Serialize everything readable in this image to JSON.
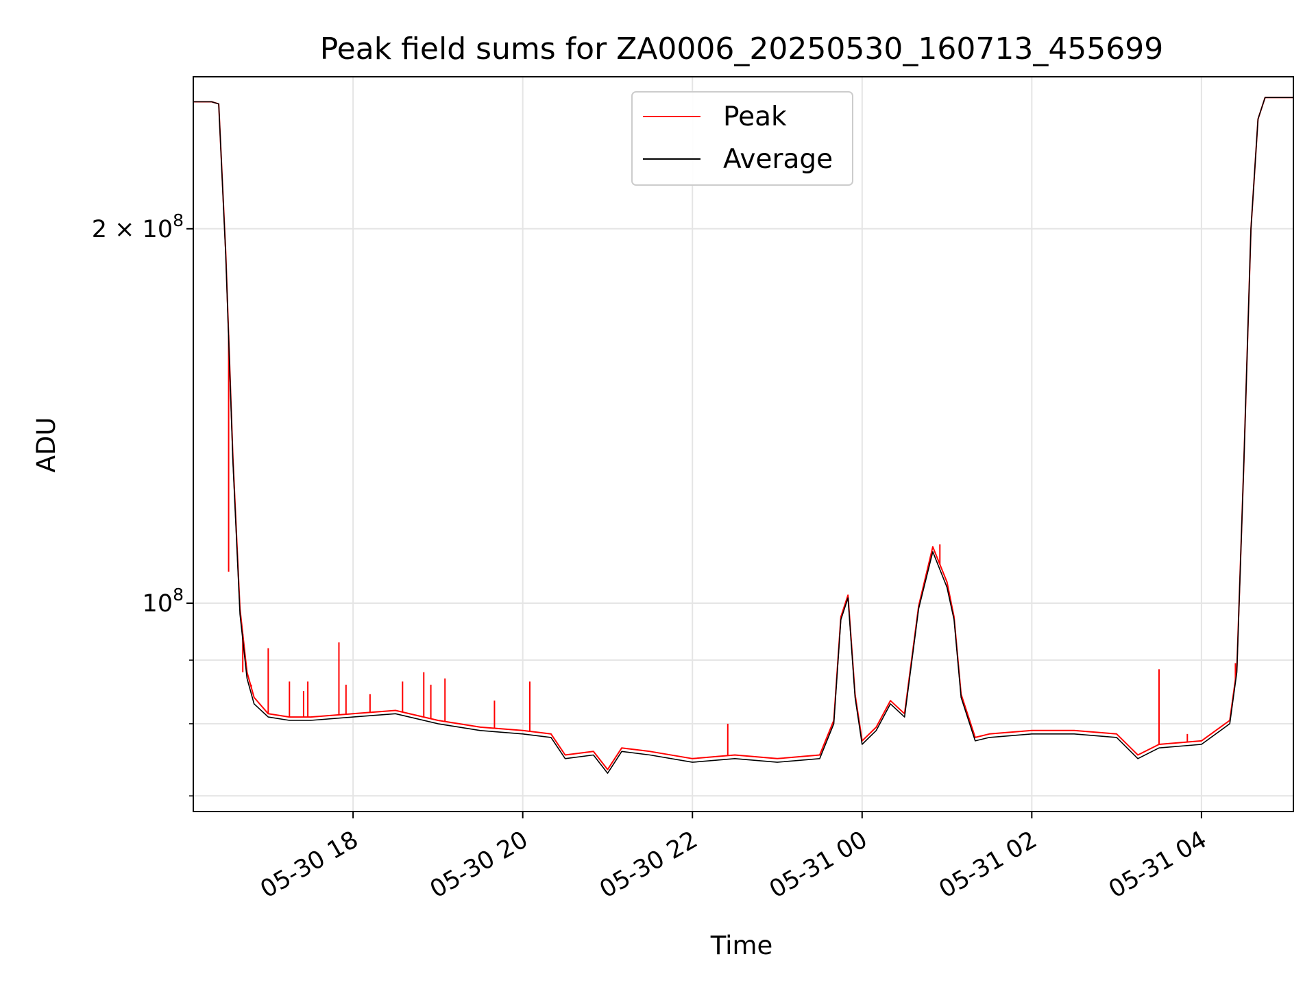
{
  "chart_data": {
    "type": "line",
    "title": "Peak field sums for ZA0006_20250530_160713_455699",
    "xlabel": "Time",
    "ylabel": "ADU",
    "yscale": "log",
    "grid": true,
    "legend_position": "upper center",
    "xlim": [
      "2025-05-30 16:07",
      "2025-05-31 05:05"
    ],
    "ylim": [
      68000000,
      265000000
    ],
    "x_ticks": [
      "05-30 18",
      "05-30 20",
      "05-30 22",
      "05-31 00",
      "05-31 02",
      "05-31 04"
    ],
    "y_ticks": [
      {
        "value": 100000000,
        "base": "10",
        "exp": "8"
      },
      {
        "value": 200000000,
        "base": "2 × 10",
        "exp": "8"
      }
    ],
    "colors": {
      "peak": "#ff0000",
      "average": "#000000",
      "grid": "#e5e5e5"
    },
    "series": [
      {
        "name": "Average",
        "x": [
          "2025-05-30 16:07",
          "2025-05-30 16:15",
          "2025-05-30 16:20",
          "2025-05-30 16:25",
          "2025-05-30 16:30",
          "2025-05-30 16:35",
          "2025-05-30 16:40",
          "2025-05-30 16:45",
          "2025-05-30 16:50",
          "2025-05-30 17:00",
          "2025-05-30 17:15",
          "2025-05-30 17:30",
          "2025-05-30 18:00",
          "2025-05-30 18:30",
          "2025-05-30 19:00",
          "2025-05-30 19:30",
          "2025-05-30 20:00",
          "2025-05-30 20:20",
          "2025-05-30 20:30",
          "2025-05-30 20:50",
          "2025-05-30 21:00",
          "2025-05-30 21:10",
          "2025-05-30 21:30",
          "2025-05-30 22:00",
          "2025-05-30 22:30",
          "2025-05-30 23:00",
          "2025-05-30 23:30",
          "2025-05-30 23:40",
          "2025-05-30 23:45",
          "2025-05-30 23:50",
          "2025-05-30 23:55",
          "2025-05-31 00:00",
          "2025-05-31 00:10",
          "2025-05-31 00:20",
          "2025-05-31 00:30",
          "2025-05-31 00:40",
          "2025-05-31 00:50",
          "2025-05-31 01:00",
          "2025-05-31 01:05",
          "2025-05-31 01:10",
          "2025-05-31 01:20",
          "2025-05-31 01:30",
          "2025-05-31 02:00",
          "2025-05-31 02:30",
          "2025-05-31 03:00",
          "2025-05-31 03:15",
          "2025-05-31 03:30",
          "2025-05-31 04:00",
          "2025-05-31 04:20",
          "2025-05-31 04:25",
          "2025-05-31 04:30",
          "2025-05-31 04:35",
          "2025-05-31 04:40",
          "2025-05-31 04:45",
          "2025-05-31 04:50",
          "2025-05-31 05:05"
        ],
        "values": [
          253000000,
          253000000,
          253000000,
          252000000,
          190000000,
          130000000,
          98000000,
          87000000,
          83000000,
          81000000,
          80500000,
          80500000,
          81000000,
          81500000,
          80000000,
          79000000,
          78500000,
          78000000,
          75000000,
          75500000,
          73000000,
          76000000,
          75500000,
          74500000,
          75000000,
          74500000,
          75000000,
          80000000,
          97000000,
          101000000,
          84000000,
          77000000,
          79000000,
          83000000,
          81000000,
          99000000,
          110000000,
          103000000,
          97000000,
          84000000,
          77500000,
          78000000,
          78500000,
          78500000,
          78000000,
          75000000,
          76500000,
          77000000,
          80000000,
          88000000,
          130000000,
          200000000,
          245000000,
          255000000,
          255000000,
          255000000
        ]
      },
      {
        "name": "Peak",
        "x": [
          "2025-05-30 16:07",
          "2025-05-30 16:15",
          "2025-05-30 16:20",
          "2025-05-30 16:25",
          "2025-05-30 16:30",
          "2025-05-30 16:35",
          "2025-05-30 16:40",
          "2025-05-30 16:45",
          "2025-05-30 16:50",
          "2025-05-30 17:00",
          "2025-05-30 17:15",
          "2025-05-30 17:30",
          "2025-05-30 18:00",
          "2025-05-30 18:30",
          "2025-05-30 19:00",
          "2025-05-30 19:30",
          "2025-05-30 20:00",
          "2025-05-30 20:20",
          "2025-05-30 20:30",
          "2025-05-30 20:50",
          "2025-05-30 21:00",
          "2025-05-30 21:10",
          "2025-05-30 21:30",
          "2025-05-30 22:00",
          "2025-05-30 22:30",
          "2025-05-30 23:00",
          "2025-05-30 23:30",
          "2025-05-30 23:40",
          "2025-05-30 23:45",
          "2025-05-30 23:50",
          "2025-05-30 23:55",
          "2025-05-31 00:00",
          "2025-05-31 00:10",
          "2025-05-31 00:20",
          "2025-05-31 00:30",
          "2025-05-31 00:40",
          "2025-05-31 00:50",
          "2025-05-31 01:00",
          "2025-05-31 01:05",
          "2025-05-31 01:10",
          "2025-05-31 01:20",
          "2025-05-31 01:30",
          "2025-05-31 02:00",
          "2025-05-31 02:30",
          "2025-05-31 03:00",
          "2025-05-31 03:15",
          "2025-05-31 03:30",
          "2025-05-31 04:00",
          "2025-05-31 04:20",
          "2025-05-31 04:25",
          "2025-05-31 04:30",
          "2025-05-31 04:35",
          "2025-05-31 04:40",
          "2025-05-31 04:45",
          "2025-05-31 04:50",
          "2025-05-31 05:05"
        ],
        "values": [
          253000000,
          253000000,
          253000000,
          252000000,
          191000000,
          131000000,
          99000000,
          88000000,
          84000000,
          81500000,
          81000000,
          81000000,
          81500000,
          82000000,
          80500000,
          79500000,
          79000000,
          78500000,
          75500000,
          76000000,
          73500000,
          76500000,
          76000000,
          75000000,
          75500000,
          75000000,
          75500000,
          80500000,
          97500000,
          101500000,
          84500000,
          77500000,
          79500000,
          83500000,
          81500000,
          99500000,
          111000000,
          104000000,
          97500000,
          84500000,
          78000000,
          78500000,
          79000000,
          79000000,
          78500000,
          75500000,
          77000000,
          77500000,
          80500000,
          88500000,
          130000000,
          200000000,
          245000000,
          255000000,
          255000000,
          255000000
        ],
        "spikes": [
          {
            "x": "2025-05-30 16:32",
            "value": 106000000
          },
          {
            "x": "2025-05-30 16:42",
            "value": 88000000
          },
          {
            "x": "2025-05-30 16:48",
            "value": 86000000
          },
          {
            "x": "2025-05-30 17:00",
            "value": 92000000
          },
          {
            "x": "2025-05-30 17:15",
            "value": 86500000
          },
          {
            "x": "2025-05-30 17:25",
            "value": 85000000
          },
          {
            "x": "2025-05-30 17:28",
            "value": 86500000
          },
          {
            "x": "2025-05-30 17:50",
            "value": 93000000
          },
          {
            "x": "2025-05-30 17:55",
            "value": 86000000
          },
          {
            "x": "2025-05-30 18:12",
            "value": 84500000
          },
          {
            "x": "2025-05-30 18:35",
            "value": 86500000
          },
          {
            "x": "2025-05-30 18:50",
            "value": 88000000
          },
          {
            "x": "2025-05-30 18:55",
            "value": 86000000
          },
          {
            "x": "2025-05-30 19:05",
            "value": 87000000
          },
          {
            "x": "2025-05-30 19:40",
            "value": 83500000
          },
          {
            "x": "2025-05-30 20:05",
            "value": 86500000
          },
          {
            "x": "2025-05-30 22:25",
            "value": 80000000
          },
          {
            "x": "2025-05-31 00:55",
            "value": 111500000
          },
          {
            "x": "2025-05-31 03:30",
            "value": 88500000
          },
          {
            "x": "2025-05-31 03:50",
            "value": 78500000
          },
          {
            "x": "2025-05-31 04:24",
            "value": 89500000
          }
        ]
      }
    ],
    "legend": [
      {
        "name": "Peak",
        "color": "#ff0000"
      },
      {
        "name": "Average",
        "color": "#000000"
      }
    ]
  }
}
